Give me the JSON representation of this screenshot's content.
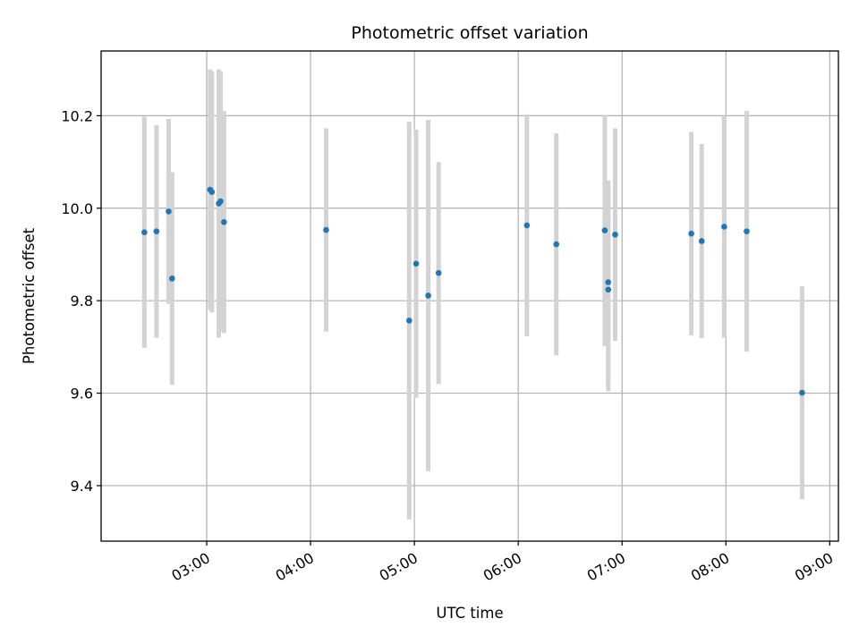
{
  "chart_data": {
    "type": "scatter",
    "title": "Photometric offset variation",
    "xlabel": "UTC time",
    "ylabel": "Photometric offset",
    "x_unit": "UTC time (hh:mm)",
    "xlim": [
      "02:00",
      "09:00"
    ],
    "ylim": [
      9.28,
      10.34
    ],
    "x_ticks": [
      "03:00",
      "04:00",
      "05:00",
      "06:00",
      "07:00",
      "08:00",
      "09:00"
    ],
    "y_ticks": [
      "9.4",
      "9.6",
      "9.8",
      "10.0",
      "10.2"
    ],
    "grid": true,
    "marker_color": "#1f77b4",
    "errorbar_color": "#d3d3d3",
    "points": [
      {
        "x": "02:24",
        "y": 9.948,
        "yerr": 0.25
      },
      {
        "x": "02:31",
        "y": 9.95,
        "yerr": 0.23
      },
      {
        "x": "02:38",
        "y": 9.993,
        "yerr": 0.2
      },
      {
        "x": "02:40",
        "y": 9.848,
        "yerr": 0.23
      },
      {
        "x": "03:02",
        "y": 10.04,
        "yerr": 0.26
      },
      {
        "x": "03:03",
        "y": 10.035,
        "yerr": 0.26
      },
      {
        "x": "03:07",
        "y": 10.01,
        "yerr": 0.29
      },
      {
        "x": "03:08",
        "y": 10.015,
        "yerr": 0.28
      },
      {
        "x": "03:10",
        "y": 9.97,
        "yerr": 0.24
      },
      {
        "x": "04:09",
        "y": 9.953,
        "yerr": 0.22
      },
      {
        "x": "04:57",
        "y": 9.757,
        "yerr": 0.43
      },
      {
        "x": "05:01",
        "y": 9.88,
        "yerr": 0.29
      },
      {
        "x": "05:08",
        "y": 9.811,
        "yerr": 0.38
      },
      {
        "x": "05:14",
        "y": 9.86,
        "yerr": 0.24
      },
      {
        "x": "06:05",
        "y": 9.963,
        "yerr": 0.24
      },
      {
        "x": "06:22",
        "y": 9.922,
        "yerr": 0.24
      },
      {
        "x": "06:50",
        "y": 9.952,
        "yerr": 0.25
      },
      {
        "x": "06:52",
        "y": 9.84,
        "yerr": 0.22
      },
      {
        "x": "06:52",
        "y": 9.824,
        "yerr": 0.22
      },
      {
        "x": "06:56",
        "y": 9.943,
        "yerr": 0.23
      },
      {
        "x": "07:40",
        "y": 9.945,
        "yerr": 0.22
      },
      {
        "x": "07:46",
        "y": 9.929,
        "yerr": 0.21
      },
      {
        "x": "07:59",
        "y": 9.96,
        "yerr": 0.24
      },
      {
        "x": "08:12",
        "y": 9.95,
        "yerr": 0.26
      },
      {
        "x": "08:44",
        "y": 9.601,
        "yerr": 0.23
      }
    ]
  }
}
